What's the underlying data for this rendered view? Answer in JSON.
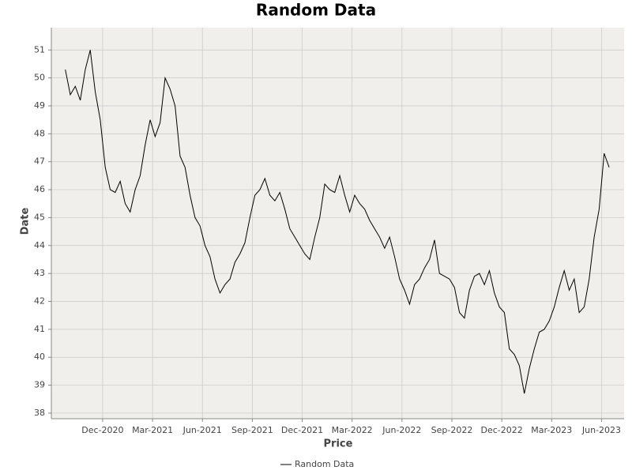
{
  "chart_data": {
    "type": "line",
    "title": "Random Data",
    "xlabel": "Price",
    "ylabel": "Date",
    "x": [
      2020.73,
      2020.755,
      2020.78,
      2020.805,
      2020.83,
      2020.855,
      2020.88,
      2020.905,
      2020.93,
      2020.955,
      2020.98,
      2021.005,
      2021.03,
      2021.055,
      2021.08,
      2021.105,
      2021.13,
      2021.155,
      2021.18,
      2021.205,
      2021.23,
      2021.255,
      2021.28,
      2021.305,
      2021.33,
      2021.355,
      2021.38,
      2021.405,
      2021.43,
      2021.455,
      2021.48,
      2021.505,
      2021.53,
      2021.555,
      2021.58,
      2021.605,
      2021.63,
      2021.655,
      2021.68,
      2021.705,
      2021.73,
      2021.755,
      2021.78,
      2021.805,
      2021.83,
      2021.855,
      2021.88,
      2021.905,
      2021.93,
      2021.955,
      2021.98,
      2022.005,
      2022.03,
      2022.055,
      2022.08,
      2022.105,
      2022.13,
      2022.155,
      2022.18,
      2022.205,
      2022.23,
      2022.255,
      2022.28,
      2022.305,
      2022.33,
      2022.355,
      2022.38,
      2022.405,
      2022.43,
      2022.455,
      2022.48,
      2022.505,
      2022.53,
      2022.555,
      2022.58,
      2022.605,
      2022.63,
      2022.655,
      2022.68,
      2022.705,
      2022.73,
      2022.755,
      2022.78,
      2022.805,
      2022.83,
      2022.855,
      2022.88,
      2022.905,
      2022.93,
      2022.955,
      2022.98,
      2023.005,
      2023.03,
      2023.055,
      2023.08,
      2023.105,
      2023.13,
      2023.155,
      2023.18,
      2023.205,
      2023.23,
      2023.255,
      2023.28,
      2023.305,
      2023.33,
      2023.355,
      2023.38,
      2023.405,
      2023.43,
      2023.455
    ],
    "series": [
      {
        "name": "Random Data",
        "color": "#000000",
        "values": [
          50.3,
          49.4,
          49.7,
          49.2,
          50.3,
          51.0,
          49.5,
          48.5,
          46.8,
          46.0,
          45.9,
          46.3,
          45.5,
          45.2,
          46.0,
          46.5,
          47.6,
          48.5,
          47.9,
          48.4,
          50.0,
          49.6,
          49.0,
          47.2,
          46.8,
          45.8,
          45.0,
          44.7,
          44.0,
          43.6,
          42.8,
          42.3,
          42.6,
          42.8,
          43.4,
          43.7,
          44.1,
          45.0,
          45.8,
          46.0,
          46.4,
          45.8,
          45.6,
          45.9,
          45.3,
          44.6,
          44.3,
          44.0,
          43.7,
          43.5,
          44.3,
          45.0,
          46.2,
          46.0,
          45.9,
          46.5,
          45.8,
          45.2,
          45.8,
          45.5,
          45.3,
          44.9,
          44.6,
          44.3,
          43.9,
          44.3,
          43.6,
          42.8,
          42.4,
          41.9,
          42.6,
          42.8,
          43.2,
          43.5,
          44.2,
          43.0,
          42.9,
          42.8,
          42.5,
          41.6,
          41.4,
          42.4,
          42.9,
          43.0,
          42.6,
          43.1,
          42.3,
          41.8,
          41.6,
          40.3,
          40.1,
          39.7,
          38.7,
          39.6,
          40.3,
          40.9,
          41.0,
          41.3,
          41.8,
          42.5,
          43.1,
          42.4,
          42.8,
          41.6,
          41.8,
          42.8,
          44.3,
          45.3,
          47.3,
          46.8
        ]
      }
    ],
    "xlim": [
      2020.66,
      2023.53
    ],
    "xticks": [
      {
        "value": 2020.917,
        "label": "Dec-2020"
      },
      {
        "value": 2021.167,
        "label": "Mar-2021"
      },
      {
        "value": 2021.417,
        "label": "Jun-2021"
      },
      {
        "value": 2021.667,
        "label": "Sep-2021"
      },
      {
        "value": 2021.917,
        "label": "Dec-2021"
      },
      {
        "value": 2022.167,
        "label": "Mar-2022"
      },
      {
        "value": 2022.417,
        "label": "Jun-2022"
      },
      {
        "value": 2022.667,
        "label": "Sep-2022"
      },
      {
        "value": 2022.917,
        "label": "Dec-2022"
      },
      {
        "value": 2023.167,
        "label": "Mar-2023"
      },
      {
        "value": 2023.417,
        "label": "Jun-2023"
      }
    ],
    "ylim": [
      37.8,
      51.8
    ],
    "yticks": [
      38,
      39,
      40,
      41,
      42,
      43,
      44,
      45,
      46,
      47,
      48,
      49,
      50,
      51
    ],
    "grid": true
  }
}
